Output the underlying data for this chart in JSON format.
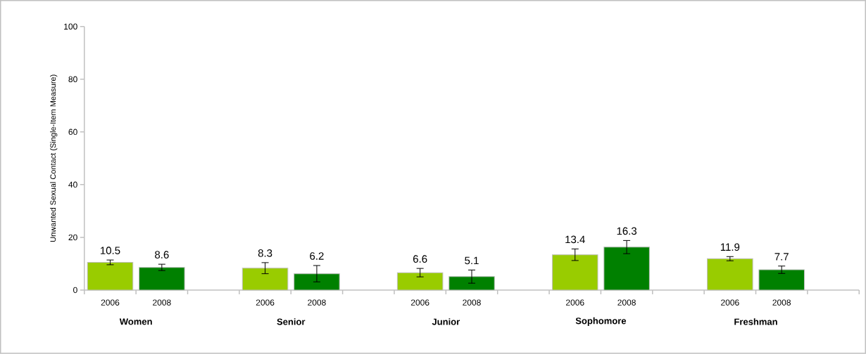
{
  "chart_data": {
    "type": "bar",
    "categories": [
      "Women",
      "Senior",
      "Junior",
      "Sophomore",
      "Freshman"
    ],
    "series": [
      {
        "name": "2006",
        "color": "#99cc00",
        "values": [
          10.5,
          8.3,
          6.6,
          13.4,
          11.9
        ],
        "errors": [
          0.9,
          2.1,
          1.6,
          2.2,
          0.8
        ]
      },
      {
        "name": "2008",
        "color": "#008000",
        "values": [
          8.6,
          6.2,
          5.1,
          16.3,
          7.7
        ],
        "errors": [
          1.2,
          3.1,
          2.5,
          2.5,
          1.4
        ]
      }
    ],
    "ylabel": "Unwanted Sexual Contact (Single-Item Measure)",
    "ylim": [
      0,
      100
    ],
    "yticks": [
      0,
      20,
      40,
      60,
      80,
      100
    ],
    "data_labels": true,
    "grid": false
  }
}
